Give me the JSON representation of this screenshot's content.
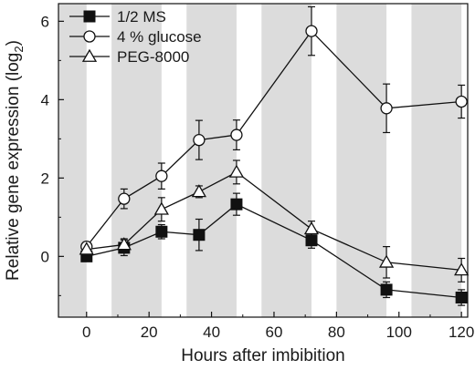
{
  "chart_data": {
    "type": "line",
    "xlabel": "Hours after imbibition",
    "ylabel": "Relative gene expression (log",
    "ylabel_sub": "2",
    "ylabel_close": ")",
    "xlim": [
      -9,
      122
    ],
    "ylim": [
      -1.55,
      6.45
    ],
    "xticks": [
      0,
      20,
      40,
      60,
      80,
      100,
      120
    ],
    "xtick_labels": [
      "0",
      "20",
      "40",
      "60",
      "80",
      "100",
      "120"
    ],
    "yticks": [
      0,
      2,
      4,
      6
    ],
    "ytick_labels": [
      "0",
      "2",
      "4",
      "6"
    ],
    "shaded_bands": [
      [
        -9,
        0
      ],
      [
        8,
        24
      ],
      [
        32,
        48
      ],
      [
        56,
        72
      ],
      [
        80,
        96
      ],
      [
        104,
        120
      ]
    ],
    "shade_color": "#dcdcdc",
    "legend_position": "top-left",
    "series": [
      {
        "name": "1/2 MS",
        "marker": "filled-square",
        "color": "#111111",
        "x": [
          0,
          12,
          24,
          36,
          48,
          72,
          96,
          120
        ],
        "y": [
          0.0,
          0.22,
          0.63,
          0.55,
          1.33,
          0.41,
          -0.85,
          -1.05
        ],
        "err": [
          0.08,
          0.2,
          0.18,
          0.4,
          0.28,
          0.2,
          0.2,
          0.2
        ]
      },
      {
        "name": "4 % glucose",
        "marker": "open-circle",
        "color": "#111111",
        "x": [
          0,
          12,
          24,
          36,
          48,
          72,
          96,
          120
        ],
        "y": [
          0.25,
          1.47,
          2.05,
          2.97,
          3.1,
          5.75,
          3.78,
          3.95
        ],
        "err": [
          0.12,
          0.25,
          0.33,
          0.5,
          0.38,
          0.62,
          0.62,
          0.42
        ]
      },
      {
        "name": "PEG-8000",
        "marker": "open-triangle",
        "color": "#111111",
        "x": [
          0,
          12,
          24,
          36,
          48,
          72,
          96,
          120
        ],
        "y": [
          0.18,
          0.3,
          1.2,
          1.65,
          2.15,
          0.7,
          -0.15,
          -0.35
        ],
        "err": [
          0.15,
          0.15,
          0.3,
          0.15,
          0.3,
          0.2,
          0.4,
          0.3
        ]
      }
    ]
  }
}
